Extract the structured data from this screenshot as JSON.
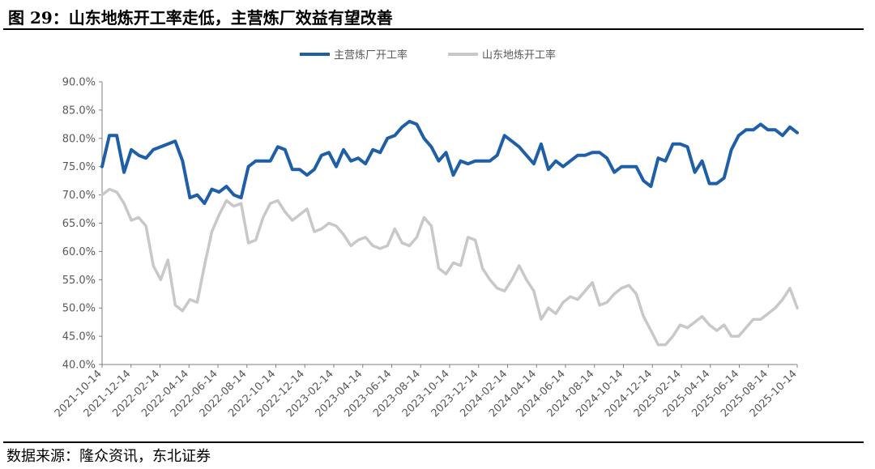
{
  "header": {
    "title": "图 29：山东地炼开工率走低，主营炼厂效益有望改善"
  },
  "footer": {
    "source": "数据来源：隆众资讯，东北证券"
  },
  "chart_data": {
    "type": "line",
    "title": "",
    "xlabel": "",
    "ylabel": "",
    "ylim": [
      40,
      90
    ],
    "y_ticks": [
      "90.0%",
      "85.0%",
      "80.0%",
      "75.0%",
      "70.0%",
      "65.0%",
      "60.0%",
      "55.0%",
      "50.0%",
      "45.0%",
      "40.0%"
    ],
    "x_ticks": [
      "2021-10-14",
      "2021-12-14",
      "2022-02-14",
      "2022-04-14",
      "2022-06-14",
      "2022-08-14",
      "2022-10-14",
      "2022-12-14",
      "2023-02-14",
      "2023-04-14",
      "2023-06-14",
      "2023-08-14",
      "2023-10-14",
      "2023-12-14",
      "2024-02-14",
      "2024-04-14",
      "2024-06-14",
      "2024-08-14",
      "2024-10-14",
      "2024-12-14",
      "2025-02-14",
      "2025-04-14",
      "2025-06-14",
      "2025-08-14",
      "2025-10-14"
    ],
    "legend_position": "top-center",
    "grid": false,
    "series": [
      {
        "name": "主营炼厂开工率",
        "color": "#1f5fa8",
        "values": [
          75,
          80.5,
          80.5,
          74,
          78,
          77,
          76.5,
          78,
          78.5,
          79,
          79.5,
          76,
          69.5,
          70,
          68.5,
          71,
          70.5,
          71.5,
          70,
          69.5,
          75,
          76,
          76,
          76,
          78.5,
          78,
          74.5,
          74.5,
          73.5,
          74.5,
          77,
          77.5,
          75,
          78,
          76,
          76.5,
          75.5,
          78,
          77.5,
          80,
          80.5,
          82,
          83,
          82.5,
          80,
          78.5,
          76,
          77.5,
          73.5,
          76,
          75.5,
          76,
          76,
          76,
          77,
          80.5,
          79.5,
          78.5,
          77,
          75.5,
          79,
          74.5,
          76,
          75,
          76,
          77,
          77,
          77.5,
          77.5,
          76.5,
          74,
          75,
          75,
          75,
          72.5,
          71.5,
          76.5,
          76,
          79,
          79,
          78.5,
          74,
          76,
          72,
          72,
          73,
          78,
          80.5,
          81.5,
          81.5,
          82.5,
          81.5,
          81.5,
          80.5,
          82,
          81
        ]
      },
      {
        "name": "山东地炼开工率",
        "color": "#c8c8c8",
        "values": [
          70,
          71,
          70.5,
          68.5,
          65.5,
          66,
          64.5,
          57.5,
          55,
          58.5,
          50.5,
          49.5,
          51.5,
          51,
          57.5,
          63.5,
          66.5,
          69,
          68,
          68.5,
          61.5,
          62,
          66,
          68.5,
          69,
          67,
          65.5,
          66.5,
          67.5,
          63.5,
          64,
          65,
          64.5,
          63,
          61,
          62,
          62.5,
          61,
          60.5,
          61,
          64,
          61.5,
          61,
          62.5,
          66,
          64.5,
          57,
          56,
          58,
          57.5,
          62.5,
          62,
          57,
          55,
          53.5,
          53,
          55,
          57.5,
          55,
          53,
          48,
          50,
          49,
          51,
          52,
          51.5,
          53,
          54.5,
          50.5,
          51,
          52.5,
          53.5,
          54,
          52.5,
          48.5,
          46,
          43.5,
          43.5,
          45,
          47,
          46.5,
          47.5,
          48.5,
          47,
          46,
          47,
          45,
          45,
          46.5,
          48,
          48,
          49,
          50,
          51.5,
          53.5,
          50
        ]
      }
    ]
  }
}
